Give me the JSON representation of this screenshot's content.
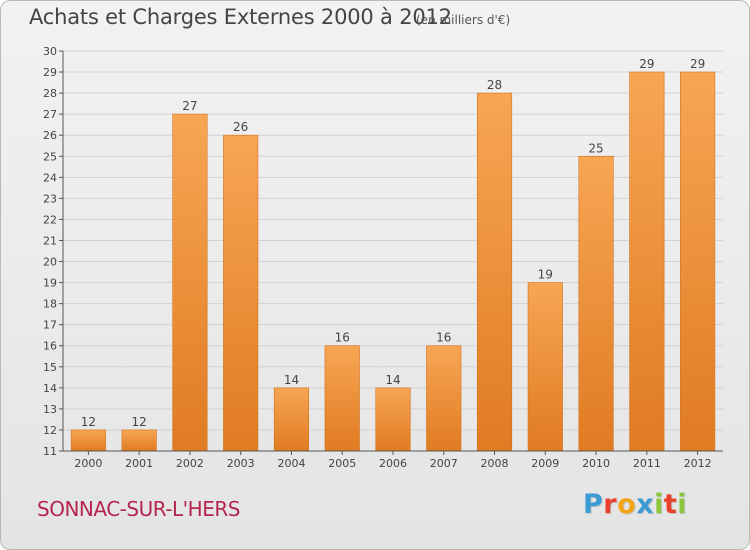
{
  "header": {
    "title": "Achats et Charges Externes 2000 à 2012",
    "unit": "(en milliers d'€)"
  },
  "commune": "SONNAC-SUR-L'HERS",
  "logo": {
    "text": "Proxiti",
    "letters": [
      {
        "char": "P",
        "color": "#3a9bd5"
      },
      {
        "char": "r",
        "color": "#e8402a"
      },
      {
        "char": "o",
        "color": "#f2a516"
      },
      {
        "char": "x",
        "color": "#3a9bd5"
      },
      {
        "char": "i",
        "color": "#8cc63e"
      },
      {
        "char": "t",
        "color": "#e8402a"
      },
      {
        "char": "i",
        "color": "#8cc63e"
      }
    ]
  },
  "colors": {
    "bar_light": "#f7a654",
    "bar_dark": "#e07b22",
    "grid": "#d2d2d2",
    "axis": "#555555",
    "label": "#444444"
  },
  "chart_data": {
    "type": "bar",
    "categories": [
      "2000",
      "2001",
      "2002",
      "2003",
      "2004",
      "2005",
      "2006",
      "2007",
      "2008",
      "2009",
      "2010",
      "2011",
      "2012"
    ],
    "values": [
      12,
      12,
      27,
      26,
      14,
      16,
      14,
      16,
      28,
      19,
      25,
      29,
      29
    ],
    "data_labels": [
      "12",
      "12",
      "27",
      "26",
      "14",
      "16",
      "14",
      "16",
      "28",
      "19",
      "25",
      "29",
      "29"
    ],
    "ylim": [
      11,
      30
    ],
    "yticks": [
      "11",
      "12",
      "13",
      "14",
      "15",
      "16",
      "17",
      "18",
      "19",
      "20",
      "21",
      "22",
      "23",
      "24",
      "25",
      "26",
      "27",
      "28",
      "29",
      "30"
    ],
    "grid": true,
    "xlabel": "",
    "ylabel": ""
  }
}
